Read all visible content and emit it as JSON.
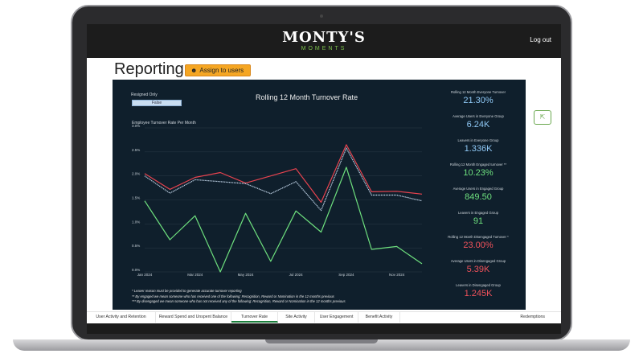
{
  "header": {
    "brand": "MONTY'S",
    "brand_sub": "MOMENTS",
    "logout_label": "Log out"
  },
  "page": {
    "title": "Reporting",
    "assign_label": "Assign to users",
    "assign_icon": "users-icon"
  },
  "filter": {
    "label": "Resigned Only",
    "value": "False"
  },
  "chart_data": {
    "type": "line",
    "title": "Rolling 12 Month Turnover Rate",
    "subtitle": "Employee Turnover Rate Per Month",
    "ylim": [
      0,
      3.0
    ],
    "y_ticks": [
      "0.0%",
      "0.5%",
      "1.0%",
      "1.5%",
      "2.0%",
      "2.5%",
      "3.0%"
    ],
    "x_ticks": [
      "Jan 2024",
      "Mar 2024",
      "May 2024",
      "Jul 2024",
      "Sep 2024",
      "Nov 2024"
    ],
    "x": [
      "Jan 2024",
      "Feb 2024",
      "Mar 2024",
      "Apr 2024",
      "May 2024",
      "Jun 2024",
      "Jul 2024",
      "Aug 2024",
      "Sep 2024",
      "Oct 2024",
      "Nov 2024",
      "Dec 2024"
    ],
    "series": [
      {
        "values": [
          2.05,
          1.72,
          1.97,
          2.07,
          1.85,
          2.0,
          2.15,
          1.45,
          2.65,
          1.67,
          1.68,
          1.62
        ],
        "color": "#e8434f"
      },
      {
        "values": [
          2.0,
          1.64,
          1.92,
          1.88,
          1.84,
          1.63,
          1.88,
          1.28,
          2.58,
          1.6,
          1.6,
          1.48
        ],
        "color": "#c9dcf0"
      },
      {
        "values": [
          1.48,
          0.67,
          1.17,
          0.0,
          1.22,
          0.22,
          1.27,
          0.83,
          2.18,
          0.47,
          0.53,
          0.17
        ],
        "color": "#6ee07e"
      }
    ],
    "grid": true
  },
  "kpis": [
    {
      "label": "Rolling 12 Month Everyone Turnover",
      "value": "21.30%",
      "color": "#8fc8f5"
    },
    {
      "label": "Average Users in Everyone Group",
      "value": "6.24K",
      "color": "#8fc8f5"
    },
    {
      "label": "Leavers in Everyone Group",
      "value": "1.336K",
      "color": "#8fc8f5"
    },
    {
      "label": "Rolling 12 Month Engaged turnover **",
      "value": "10.23%",
      "color": "#6ee07e"
    },
    {
      "label": "Average Users in Engaged Group",
      "value": "849.50",
      "color": "#6ee07e"
    },
    {
      "label": "Leavers in Engaged Group",
      "value": "91",
      "color": "#6ee07e"
    },
    {
      "label": "Rolling 12 Month Disengaged Turnover *",
      "value": "23.00%",
      "color": "#f0525b"
    },
    {
      "label": "Average Users in Disengaged Group",
      "value": "5.39K",
      "color": "#f0525b"
    },
    {
      "label": "Leavers in Disengaged Group",
      "value": "1.245K",
      "color": "#f0525b"
    }
  ],
  "notes": [
    "* Leaver reason must be provided to generate accurate turnover reporting",
    "** By engaged we mean someone who has received one of the following: Recognition, Reward or Nomination in the 12 months previous",
    "*** By disengaged we mean someone who has not received any of the following: Recognition, Reward or Nomination in the 12 months previous"
  ],
  "tabs": [
    {
      "label": "User Activity and Retention",
      "active": false
    },
    {
      "label": "Reward Spend and Unspent Balance",
      "active": false
    },
    {
      "label": "Turnover Rate",
      "active": true
    },
    {
      "label": "Site Activity",
      "active": false
    },
    {
      "label": "User Engagement",
      "active": false
    },
    {
      "label": "Benefit Activity",
      "active": false
    }
  ],
  "redemptions_label": "Redemptions",
  "expand_icon": "expand-icon"
}
